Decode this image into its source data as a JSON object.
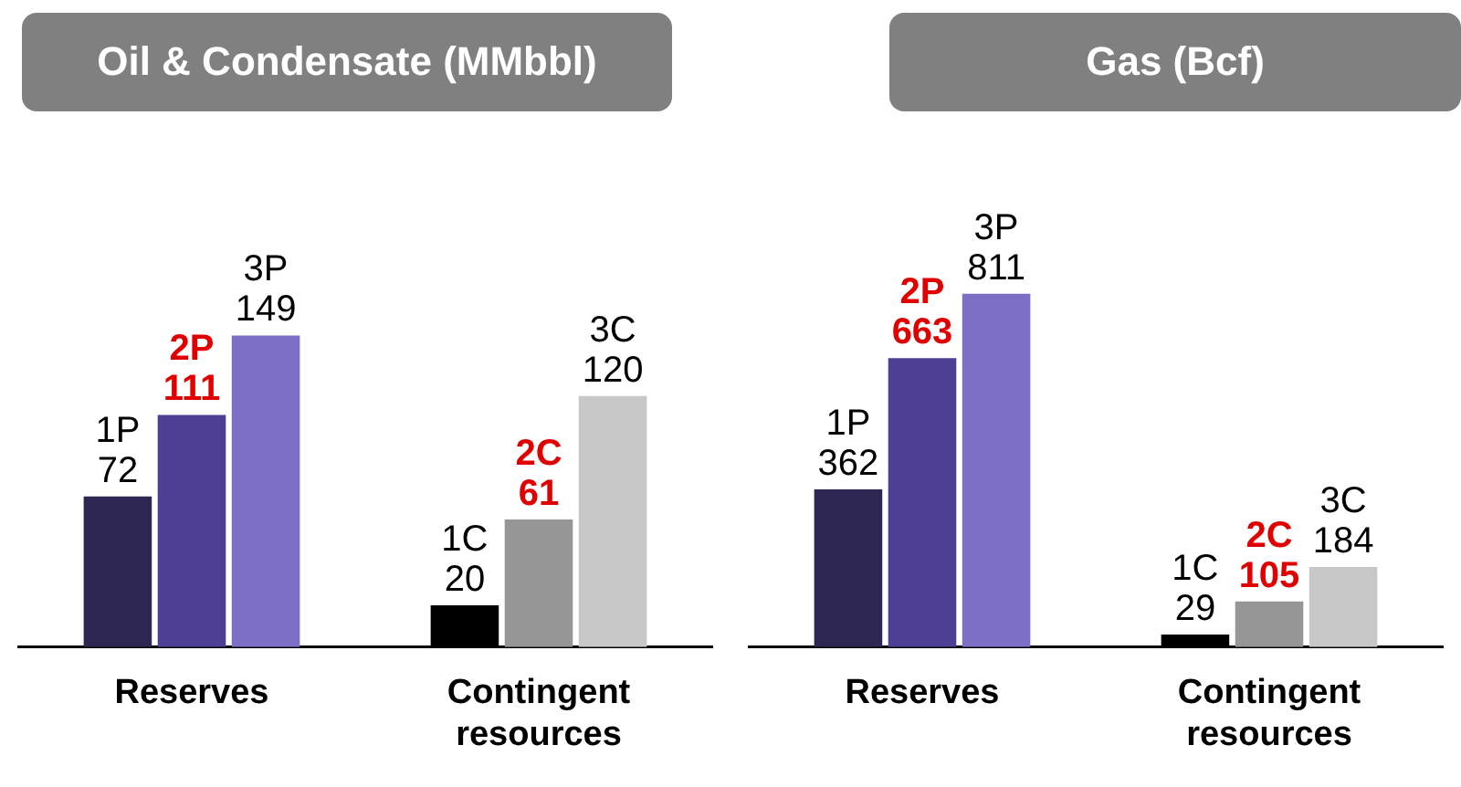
{
  "chart_data": [
    {
      "type": "bar",
      "title": "Oil & Condensate (MMbbl)",
      "categories": [
        "Reserves",
        "Contingent resources"
      ],
      "grid": false,
      "legend": false,
      "tick_labels": "x",
      "series": [
        {
          "colors": [
            "#2e2752",
            "#000000"
          ],
          "values": [
            72,
            20
          ],
          "value_labels": [
            "1P 72",
            "1C 20"
          ]
        },
        {
          "colors": [
            "#4e3f94",
            "#969696"
          ],
          "values": [
            111,
            61
          ],
          "value_labels": [
            "2P 111",
            "2C 61"
          ]
        },
        {
          "colors": [
            "#7c6fc5",
            "#c8c8c8"
          ],
          "values": [
            149,
            120
          ],
          "value_labels": [
            "3P 149",
            "3C 120"
          ]
        }
      ]
    },
    {
      "type": "bar",
      "title": "Gas (Bcf)",
      "categories": [
        "Reserves",
        "Contingent resources"
      ],
      "grid": false,
      "legend": false,
      "tick_labels": "x",
      "series": [
        {
          "colors": [
            "#2e2752",
            "#000000"
          ],
          "values": [
            362,
            29
          ],
          "value_labels": [
            "1P 362",
            "1C 29"
          ]
        },
        {
          "colors": [
            "#4e3f94",
            "#969696"
          ],
          "values": [
            663,
            105
          ],
          "value_labels": [
            "2P 663",
            "2C 105"
          ]
        },
        {
          "colors": [
            "#7c6fc5",
            "#c8c8c8"
          ],
          "values": [
            811,
            184
          ],
          "value_labels": [
            "3P 811",
            "3C 184"
          ]
        }
      ]
    }
  ]
}
